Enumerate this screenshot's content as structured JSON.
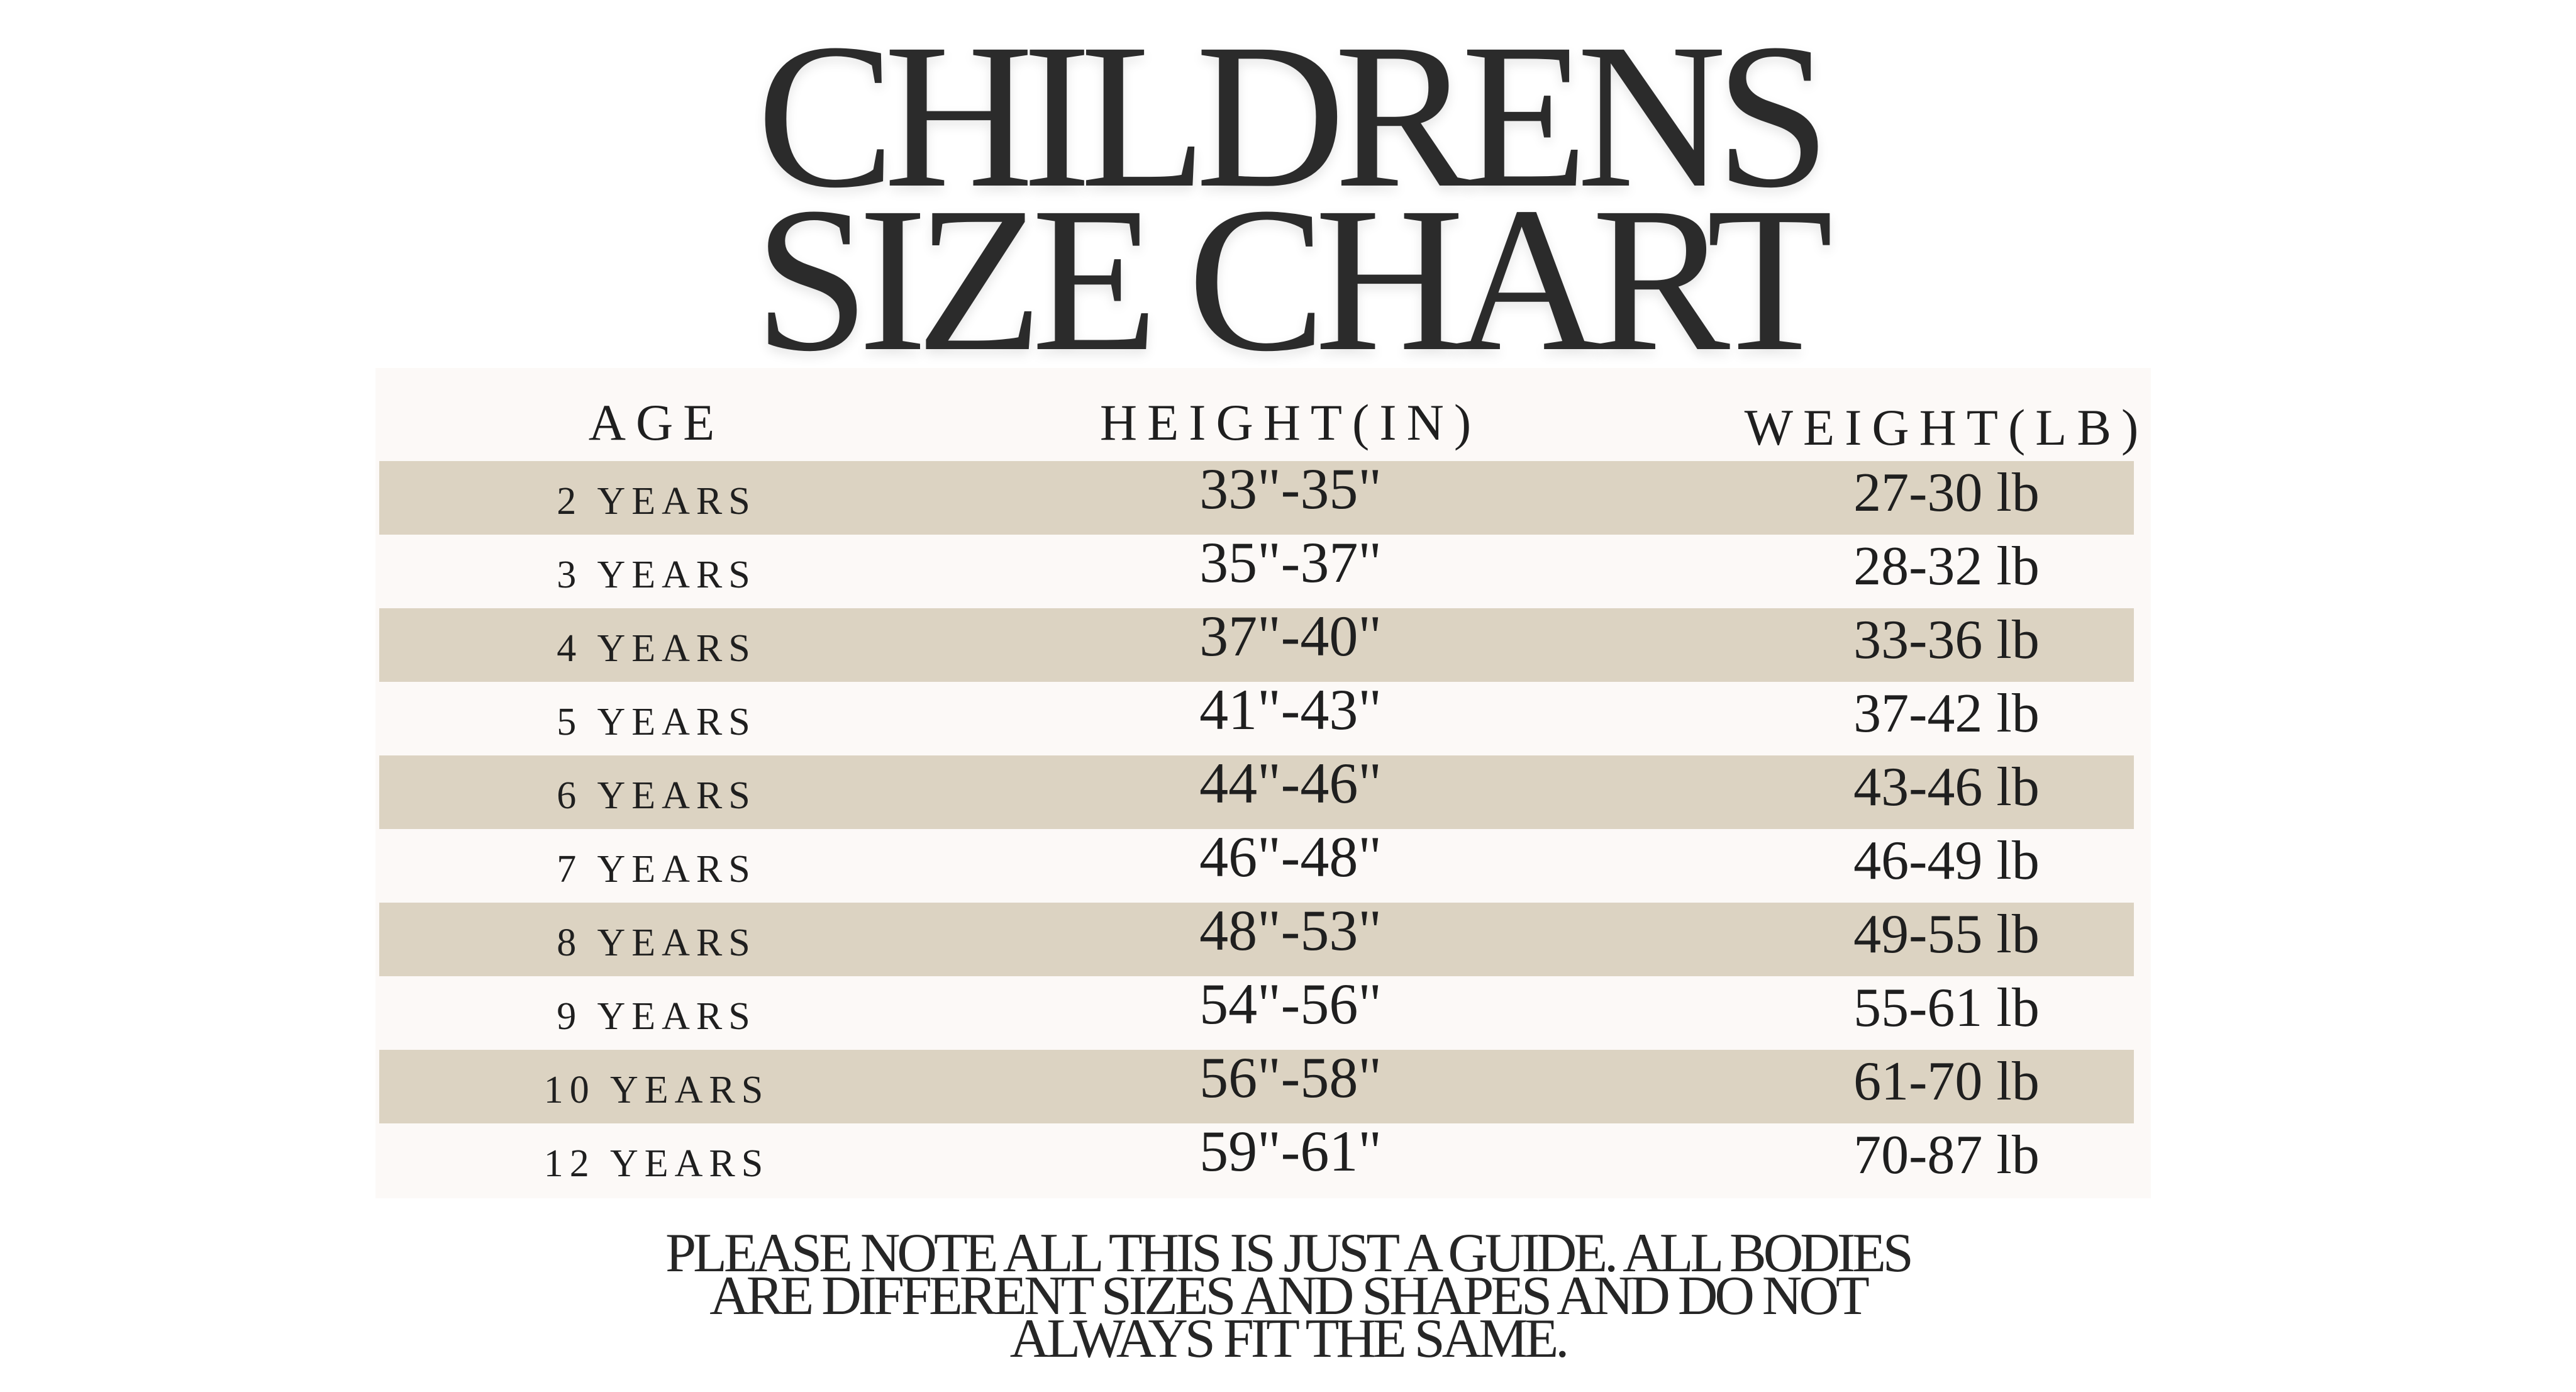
{
  "title": {
    "line1": "CHILDRENS",
    "line2": "SIZE CHART"
  },
  "table": {
    "headers": {
      "age": "AGE",
      "height": "HEIGHT(IN)",
      "weight": "WEIGHT(LB)"
    },
    "rows": [
      {
        "age": "2 YEARS",
        "height": "33\"-35\"",
        "weight": "27-30 lb"
      },
      {
        "age": "3 YEARS",
        "height": "35\"-37\"",
        "weight": "28-32 lb"
      },
      {
        "age": "4 YEARS",
        "height": "37\"-40\"",
        "weight": "33-36 lb"
      },
      {
        "age": "5 YEARS",
        "height": "41\"-43\"",
        "weight": "37-42 lb"
      },
      {
        "age": "6 YEARS",
        "height": "44\"-46\"",
        "weight": "43-46 lb"
      },
      {
        "age": "7 YEARS",
        "height": "46\"-48\"",
        "weight": "46-49 lb"
      },
      {
        "age": "8 YEARS",
        "height": "48\"-53\"",
        "weight": "49-55 lb"
      },
      {
        "age": "9 YEARS",
        "height": "54\"-56\"",
        "weight": "55-61 lb"
      },
      {
        "age": "10 YEARS",
        "height": "56\"-58\"",
        "weight": "61-70 lb"
      },
      {
        "age": "12 YEARS",
        "height": "59\"-61\"",
        "weight": "70-87 lb"
      }
    ]
  },
  "note": {
    "line1": "PLEASE NOTE ALL THIS IS JUST A GUIDE. ALL BODIES",
    "line2": "ARE DIFFERENT SIZES AND SHAPES AND DO NOT",
    "line3": "ALWAYS FIT THE SAME."
  },
  "colors": {
    "row_shade": "#dcd3c2",
    "card_background": "#fcf9f7",
    "text": "#2a2a2a"
  }
}
